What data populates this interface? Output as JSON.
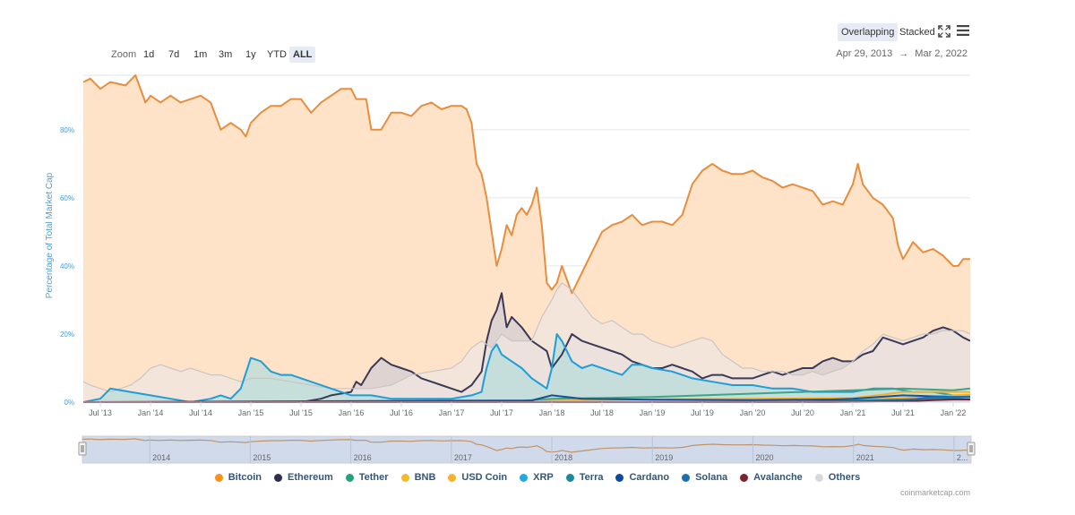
{
  "toolbar": {
    "zoom_label": "Zoom",
    "zoom_options": [
      "1d",
      "7d",
      "1m",
      "3m",
      "1y",
      "YTD",
      "ALL"
    ],
    "zoom_selected": "ALL",
    "date_from": "Apr 29, 2013",
    "date_arrow": "→",
    "date_to": "Mar 2, 2022",
    "view_overlapping": "Overlapping",
    "view_stacked": "Stacked",
    "fullscreen_icon": "fullscreen-icon",
    "menu_icon": "hamburger-menu-icon"
  },
  "credits": "coinmarketcap.com",
  "chart_data": {
    "type": "area",
    "title": "",
    "ylabel": "Percentage of Total Market Cap",
    "xlabel": "",
    "ylim": [
      0,
      96
    ],
    "yticks": [
      "0%",
      "20%",
      "40%",
      "60%",
      "80%"
    ],
    "ytick_values": [
      0,
      20,
      40,
      60,
      80
    ],
    "xticks": [
      "Jul '13",
      "Jan '14",
      "Jul '14",
      "Jan '15",
      "Jul '15",
      "Jan '16",
      "Jul '16",
      "Jan '17",
      "Jul '17",
      "Jan '18",
      "Jul '18",
      "Jan '19",
      "Jul '19",
      "Jan '20",
      "Jul '20",
      "Jan '21",
      "Jul '21",
      "Jan '22"
    ],
    "xtick_values": [
      2013.5,
      2014.0,
      2014.5,
      2015.0,
      2015.5,
      2016.0,
      2016.5,
      2017.0,
      2017.5,
      2018.0,
      2018.5,
      2019.0,
      2019.5,
      2020.0,
      2020.5,
      2021.0,
      2021.5,
      2022.0
    ],
    "xlim": [
      2013.33,
      2022.17
    ],
    "grid": true,
    "legend_position": "bottom",
    "navigator_labels": [
      "2014",
      "2015",
      "2016",
      "2017",
      "2018",
      "2019",
      "2020",
      "2021",
      "2..."
    ],
    "navigator_values": [
      2014.0,
      2015.0,
      2016.0,
      2017.0,
      2018.0,
      2019.0,
      2020.0,
      2021.0,
      2022.0
    ],
    "series": [
      {
        "name": "Bitcoin",
        "color": "#f7931a",
        "line": "#e98d3c",
        "fill": "#ffe3c8",
        "x": [
          2013.33,
          2013.4,
          2013.5,
          2013.6,
          2013.75,
          2013.85,
          2013.95,
          2014.0,
          2014.1,
          2014.2,
          2014.3,
          2014.4,
          2014.5,
          2014.6,
          2014.7,
          2014.8,
          2014.9,
          2014.95,
          2015.0,
          2015.1,
          2015.2,
          2015.3,
          2015.4,
          2015.5,
          2015.6,
          2015.7,
          2015.8,
          2015.9,
          2016.0,
          2016.05,
          2016.15,
          2016.2,
          2016.3,
          2016.4,
          2016.5,
          2016.6,
          2016.7,
          2016.8,
          2016.9,
          2017.0,
          2017.1,
          2017.15,
          2017.2,
          2017.25,
          2017.3,
          2017.35,
          2017.4,
          2017.45,
          2017.5,
          2017.55,
          2017.6,
          2017.65,
          2017.7,
          2017.75,
          2017.8,
          2017.85,
          2017.9,
          2017.95,
          2018.0,
          2018.05,
          2018.1,
          2018.15,
          2018.2,
          2018.3,
          2018.4,
          2018.5,
          2018.6,
          2018.7,
          2018.8,
          2018.9,
          2019.0,
          2019.1,
          2019.2,
          2019.3,
          2019.4,
          2019.5,
          2019.6,
          2019.7,
          2019.8,
          2019.9,
          2020.0,
          2020.1,
          2020.2,
          2020.3,
          2020.4,
          2020.5,
          2020.6,
          2020.7,
          2020.8,
          2020.9,
          2021.0,
          2021.05,
          2021.1,
          2021.2,
          2021.3,
          2021.4,
          2021.45,
          2021.5,
          2021.6,
          2021.7,
          2021.8,
          2021.9,
          2022.0,
          2022.05,
          2022.1,
          2022.17
        ],
        "y": [
          94,
          95,
          92,
          94,
          93,
          96,
          88,
          90,
          88,
          90,
          88,
          89,
          90,
          88,
          80,
          82,
          80,
          78,
          82,
          85,
          87,
          87,
          89,
          89,
          85,
          88,
          90,
          92,
          92,
          89,
          89,
          80,
          80,
          85,
          85,
          84,
          87,
          88,
          86,
          87,
          87,
          86,
          82,
          70,
          67,
          60,
          50,
          40,
          45,
          52,
          49,
          55,
          57,
          55,
          58,
          63,
          52,
          35,
          33,
          35,
          40,
          36,
          32,
          38,
          44,
          50,
          52,
          53,
          55,
          52,
          53,
          53,
          52,
          55,
          64,
          68,
          70,
          68,
          67,
          67,
          68,
          66,
          65,
          63,
          64,
          63,
          62,
          58,
          59,
          58,
          64,
          70,
          64,
          60,
          58,
          54,
          46,
          42,
          47,
          44,
          45,
          43,
          40,
          40,
          42,
          42
        ]
      },
      {
        "name": "Ethereum",
        "color": "#2f2e51",
        "line": "#3a3956",
        "fill": "#d4cdd6",
        "x": [
          2013.33,
          2015.5,
          2015.7,
          2015.8,
          2016.0,
          2016.05,
          2016.1,
          2016.2,
          2016.3,
          2016.4,
          2016.5,
          2016.6,
          2016.7,
          2016.8,
          2016.9,
          2017.0,
          2017.1,
          2017.2,
          2017.3,
          2017.35,
          2017.4,
          2017.45,
          2017.5,
          2017.55,
          2017.6,
          2017.7,
          2017.8,
          2017.9,
          2017.95,
          2018.0,
          2018.1,
          2018.2,
          2018.3,
          2018.4,
          2018.5,
          2018.6,
          2018.7,
          2018.8,
          2018.9,
          2019.0,
          2019.1,
          2019.2,
          2019.3,
          2019.4,
          2019.5,
          2019.6,
          2019.7,
          2019.8,
          2019.9,
          2020.0,
          2020.1,
          2020.2,
          2020.3,
          2020.4,
          2020.5,
          2020.6,
          2020.7,
          2020.8,
          2020.9,
          2021.0,
          2021.1,
          2021.2,
          2021.3,
          2021.4,
          2021.5,
          2021.6,
          2021.7,
          2021.8,
          2021.9,
          2022.0,
          2022.1,
          2022.17
        ],
        "y": [
          0,
          0,
          1,
          2,
          3,
          6,
          5,
          10,
          13,
          11,
          10,
          9,
          7,
          6,
          5,
          4,
          3,
          5,
          9,
          18,
          24,
          27,
          32,
          22,
          25,
          22,
          18,
          16,
          15,
          10,
          14,
          20,
          18,
          17,
          16,
          15,
          14,
          12,
          11,
          10,
          10,
          11,
          10,
          9,
          7,
          8,
          8,
          7,
          7,
          7,
          8,
          9,
          8,
          9,
          10,
          10,
          12,
          13,
          12,
          12,
          14,
          15,
          19,
          18,
          17,
          18,
          19,
          21,
          22,
          21,
          19,
          18
        ]
      },
      {
        "name": "Others",
        "color": "#d8d8d8",
        "line": "#c6c6c6",
        "fill": "#f0e6e0",
        "x": [
          2013.33,
          2013.4,
          2013.5,
          2013.6,
          2013.7,
          2013.8,
          2013.9,
          2014.0,
          2014.1,
          2014.2,
          2014.3,
          2014.4,
          2014.5,
          2014.6,
          2014.7,
          2014.8,
          2014.9,
          2015.0,
          2015.2,
          2015.4,
          2015.6,
          2015.8,
          2016.0,
          2016.2,
          2016.4,
          2016.6,
          2016.8,
          2017.0,
          2017.1,
          2017.2,
          2017.3,
          2017.4,
          2017.5,
          2017.6,
          2017.7,
          2017.8,
          2017.9,
          2018.0,
          2018.05,
          2018.1,
          2018.2,
          2018.3,
          2018.4,
          2018.5,
          2018.6,
          2018.7,
          2018.8,
          2018.9,
          2019.0,
          2019.1,
          2019.2,
          2019.3,
          2019.4,
          2019.5,
          2019.6,
          2019.7,
          2019.8,
          2019.9,
          2020.0,
          2020.1,
          2020.2,
          2020.3,
          2020.4,
          2020.5,
          2020.6,
          2020.7,
          2020.8,
          2020.9,
          2021.0,
          2021.1,
          2021.2,
          2021.3,
          2021.4,
          2021.5,
          2021.6,
          2021.7,
          2021.8,
          2021.9,
          2022.0,
          2022.1,
          2022.17
        ],
        "y": [
          6,
          5,
          4,
          3,
          4,
          5,
          7,
          10,
          11,
          10,
          9,
          10,
          9,
          8,
          8,
          7,
          6,
          7,
          7,
          6,
          5,
          4,
          4,
          4,
          5,
          8,
          9,
          10,
          12,
          16,
          18,
          16,
          20,
          18,
          18,
          18,
          25,
          30,
          33,
          35,
          33,
          29,
          25,
          23,
          24,
          22,
          20,
          20,
          18,
          17,
          16,
          17,
          18,
          19,
          18,
          14,
          12,
          10,
          10,
          9,
          9,
          9,
          8,
          8,
          9,
          8,
          9,
          10,
          12,
          15,
          17,
          20,
          19,
          18,
          19,
          20,
          20,
          21,
          21,
          21,
          20
        ]
      },
      {
        "name": "XRP",
        "color": "#23a8e0",
        "line": "#1d9ed8",
        "fill": "#b8dcdb",
        "x": [
          2013.33,
          2013.5,
          2013.6,
          2013.8,
          2014.0,
          2014.2,
          2014.4,
          2014.6,
          2014.7,
          2014.8,
          2014.9,
          2015.0,
          2015.1,
          2015.2,
          2015.3,
          2015.4,
          2015.6,
          2015.8,
          2016.0,
          2016.2,
          2016.4,
          2016.6,
          2016.8,
          2017.0,
          2017.2,
          2017.3,
          2017.32,
          2017.35,
          2017.4,
          2017.45,
          2017.5,
          2017.6,
          2017.7,
          2017.8,
          2017.9,
          2017.95,
          2018.0,
          2018.05,
          2018.1,
          2018.2,
          2018.3,
          2018.4,
          2018.5,
          2018.6,
          2018.7,
          2018.8,
          2018.9,
          2019.0,
          2019.2,
          2019.4,
          2019.6,
          2019.8,
          2020.0,
          2020.2,
          2020.4,
          2020.6,
          2020.8,
          2021.0,
          2021.2,
          2021.4,
          2021.6,
          2021.8,
          2022.0,
          2022.17
        ],
        "y": [
          0,
          1,
          4,
          3,
          2,
          1,
          0,
          1,
          2,
          1,
          4,
          13,
          12,
          9,
          8,
          8,
          6,
          4,
          2,
          2,
          1,
          1,
          1,
          1,
          2,
          3,
          6,
          10,
          15,
          17,
          14,
          12,
          10,
          7,
          5,
          4,
          10,
          20,
          18,
          12,
          10,
          11,
          10,
          9,
          8,
          11,
          11,
          10,
          9,
          7,
          6,
          5,
          5,
          4,
          4,
          3,
          3,
          3,
          4,
          4,
          3,
          3,
          2,
          2
        ]
      },
      {
        "name": "Tether",
        "color": "#26a17b",
        "line": "#3aa687",
        "fill": "none",
        "x": [
          2013.33,
          2017.5,
          2018.0,
          2018.5,
          2019.0,
          2019.5,
          2020.0,
          2020.5,
          2021.0,
          2021.5,
          2022.0,
          2022.17
        ],
        "y": [
          0,
          0,
          1,
          1.2,
          1.5,
          2,
          2.5,
          3,
          3.5,
          4,
          3.5,
          4
        ]
      },
      {
        "name": "BNB",
        "color": "#f3ba2f",
        "line": "#f0b22c",
        "fill": "none",
        "x": [
          2013.33,
          2017.6,
          2018.0,
          2019.0,
          2020.0,
          2021.0,
          2021.3,
          2021.5,
          2022.0,
          2022.17
        ],
        "y": [
          0,
          0,
          0.4,
          0.8,
          1,
          1.2,
          2.2,
          3,
          3,
          3
        ]
      },
      {
        "name": "USD Coin",
        "color": "#f5b427",
        "line": "#f5b427",
        "fill": "none",
        "x": [
          2013.33,
          2018.8,
          2019.5,
          2020.5,
          2021.0,
          2021.5,
          2022.0,
          2022.17
        ],
        "y": [
          0,
          0,
          0.2,
          0.3,
          0.5,
          1.2,
          2,
          2.2
        ]
      },
      {
        "name": "Terra",
        "color": "#1b8a9c",
        "line": "#1b8a9c",
        "fill": "none",
        "x": [
          2013.33,
          2019.3,
          2020.5,
          2021.0,
          2021.5,
          2022.0,
          2022.17
        ],
        "y": [
          0,
          0,
          0.1,
          0.5,
          0.8,
          1.2,
          1.5
        ]
      },
      {
        "name": "Cardano",
        "color": "#0e4b9c",
        "line": "#1a4f98",
        "fill": "none",
        "x": [
          2013.33,
          2017.8,
          2018.0,
          2018.3,
          2019.0,
          2020.0,
          2020.8,
          2021.0,
          2021.5,
          2022.0,
          2022.17
        ],
        "y": [
          0,
          0.5,
          2,
          1,
          0.7,
          0.6,
          0.8,
          1,
          2,
          1.5,
          1.5
        ]
      },
      {
        "name": "Solana",
        "color": "#1a6fb3",
        "line": "#1a6fb3",
        "fill": "none",
        "x": [
          2013.33,
          2020.3,
          2021.0,
          2021.5,
          2021.8,
          2022.0,
          2022.17
        ],
        "y": [
          0,
          0,
          0.2,
          0.5,
          1.5,
          1.5,
          1.5
        ]
      },
      {
        "name": "Avalanche",
        "color": "#7b2230",
        "line": "#7b2230",
        "fill": "none",
        "x": [
          2013.33,
          2020.8,
          2021.5,
          2021.8,
          2022.0,
          2022.17
        ],
        "y": [
          0,
          0,
          0.2,
          0.6,
          0.8,
          0.8
        ]
      }
    ]
  }
}
